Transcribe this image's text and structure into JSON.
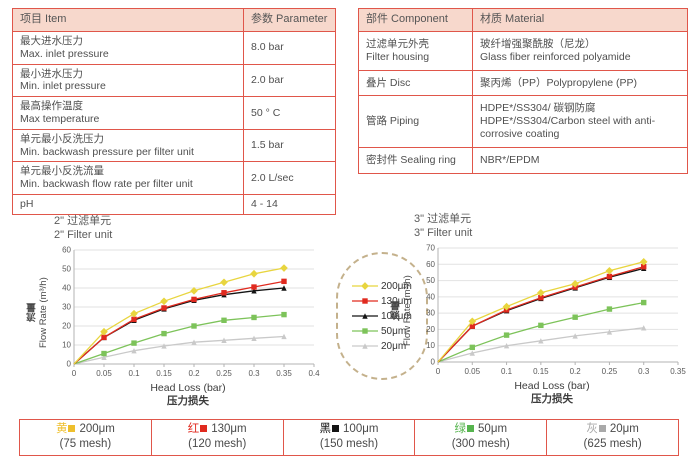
{
  "colors": {
    "table_border": "#e0564a",
    "table_header_bg": "#f7d8cc",
    "series_yellow": "#e8d53f",
    "series_red": "#e02a1f",
    "series_black": "#141414",
    "series_green": "#7dc35a",
    "series_gray": "#c9c9c9"
  },
  "spec_table": {
    "header_item": "项目 Item",
    "header_param": "参数 Parameter",
    "rows": [
      {
        "item": [
          "最大进水压力",
          "Max. inlet pressure"
        ],
        "param": "8.0 bar"
      },
      {
        "item": [
          "最小进水压力",
          "Min. inlet pressure"
        ],
        "param": "2.0 bar"
      },
      {
        "item": [
          "最高操作温度",
          "Max temperature"
        ],
        "param": "50 ° C"
      },
      {
        "item": [
          "单元最小反洗压力",
          "Min. backwash pressure per filter unit"
        ],
        "param": "1.5 bar"
      },
      {
        "item": [
          "单元最小反洗流量",
          "Min. backwash flow rate per filter unit"
        ],
        "param": "2.0 L/sec"
      },
      {
        "item": [
          "pH"
        ],
        "param": "4 - 14"
      }
    ]
  },
  "material_table": {
    "header_component": "部件 Component",
    "header_material": "材质 Material",
    "rows": [
      {
        "component": [
          "过滤单元外壳",
          "Filter housing"
        ],
        "material": [
          "玻纤增强聚酰胺（尼龙）",
          "Glass fiber reinforced polyamide"
        ]
      },
      {
        "component": [
          "叠片 Disc"
        ],
        "material": [
          "聚丙烯（PP）Polypropylene (PP)"
        ]
      },
      {
        "component": [
          "管路 Piping"
        ],
        "material": [
          "HDPE*/SS304/ 碳钢防腐",
          "HDPE*/SS304/Carbon steel with anti-corrosive coating"
        ]
      },
      {
        "component": [
          "密封件 Sealing ring"
        ],
        "material": [
          "NBR*/EPDM"
        ]
      }
    ]
  },
  "chart_data": [
    {
      "type": "line",
      "title_zh": "2\"  过滤单元",
      "title_en": "2\"  Filter unit",
      "ylabel_zh": "流量",
      "ylabel_en": "Flow Rate (m³/h)",
      "xlabel_en": "Head Loss (bar)",
      "xlabel_zh": "压力损失",
      "xlim": [
        0,
        0.4
      ],
      "ylim": [
        0,
        60
      ],
      "xticks": [
        "0",
        "0.05",
        "0.1",
        "0.15",
        "0.2",
        "0.25",
        "0.3",
        "0.35",
        "0.4"
      ],
      "yticks": [
        0,
        10,
        20,
        30,
        40,
        50,
        60
      ],
      "grid": true,
      "x": [
        0,
        0.05,
        0.1,
        0.15,
        0.2,
        0.25,
        0.3,
        0.35
      ],
      "series": [
        {
          "name": "200μm",
          "color": "#e8d53f",
          "marker": "diamond",
          "values": [
            0,
            17,
            26.5,
            33,
            38.5,
            43,
            47.5,
            50.5
          ]
        },
        {
          "name": "130μm",
          "color": "#e02a1f",
          "marker": "square",
          "values": [
            0,
            14,
            23.5,
            29.5,
            34,
            37.5,
            40.5,
            43.5
          ]
        },
        {
          "name": "100μm",
          "color": "#141414",
          "marker": "triangle",
          "values": [
            0,
            14,
            23,
            29,
            33.5,
            36.5,
            38.5,
            40
          ]
        },
        {
          "name": "50μm",
          "color": "#7dc35a",
          "marker": "square",
          "values": [
            0,
            5.5,
            11,
            16,
            20,
            23,
            24.5,
            26
          ]
        },
        {
          "name": "20μm",
          "color": "#c9c9c9",
          "marker": "triangle",
          "values": [
            0,
            3.5,
            7,
            9.5,
            11.5,
            12.5,
            13.5,
            14.5
          ]
        }
      ]
    },
    {
      "type": "line",
      "title_zh": "3\"  过滤单元",
      "title_en": "3\"  Filter unit",
      "ylabel_zh": "流量",
      "ylabel_en": "Flow Rate (m³/h)",
      "xlabel_en": "Head Loss (bar)",
      "xlabel_zh": "压力损失",
      "xlim": [
        0,
        0.35
      ],
      "ylim": [
        0,
        70
      ],
      "xticks": [
        "0",
        "0.05",
        "0.1",
        "0.15",
        "0.2",
        "0.25",
        "0.3",
        "0.35"
      ],
      "yticks": [
        0,
        10,
        20,
        30,
        40,
        50,
        60,
        70
      ],
      "grid": true,
      "x": [
        0,
        0.05,
        0.1,
        0.15,
        0.2,
        0.25,
        0.3
      ],
      "series": [
        {
          "name": "200μm",
          "color": "#e8d53f",
          "marker": "diamond",
          "values": [
            0,
            25,
            34,
            42.5,
            48,
            56,
            61.5
          ]
        },
        {
          "name": "130μm",
          "color": "#e02a1f",
          "marker": "square",
          "values": [
            0,
            22,
            32,
            39.5,
            46,
            52.5,
            58.5
          ]
        },
        {
          "name": "100μm",
          "color": "#141414",
          "marker": "triangle",
          "values": [
            0,
            22,
            31.5,
            39,
            45.5,
            52,
            57.5
          ]
        },
        {
          "name": "50μm",
          "color": "#7dc35a",
          "marker": "square",
          "values": [
            0,
            9,
            16.5,
            22.5,
            27.5,
            32.5,
            36.5
          ]
        },
        {
          "name": "20μm",
          "color": "#c9c9c9",
          "marker": "triangle",
          "values": [
            0,
            5.5,
            10,
            13,
            16,
            18.5,
            21
          ]
        }
      ]
    }
  ],
  "bottom_legend": [
    {
      "color_zh": "黄",
      "size": "200μm",
      "mesh": "(75 mesh)",
      "color": "#eebf2d"
    },
    {
      "color_zh": "红",
      "size": "130μm",
      "mesh": "(120 mesh)",
      "color": "#e02a1f"
    },
    {
      "color_zh": "黑",
      "size": "100μm",
      "mesh": "(150 mesh)",
      "color": "#141414"
    },
    {
      "color_zh": "绿",
      "size": "50μm",
      "mesh": "(300 mesh)",
      "color": "#56b44e"
    },
    {
      "color_zh": "灰",
      "size": "20μm",
      "mesh": "(625 mesh)",
      "color": "#a9a9a9"
    }
  ]
}
